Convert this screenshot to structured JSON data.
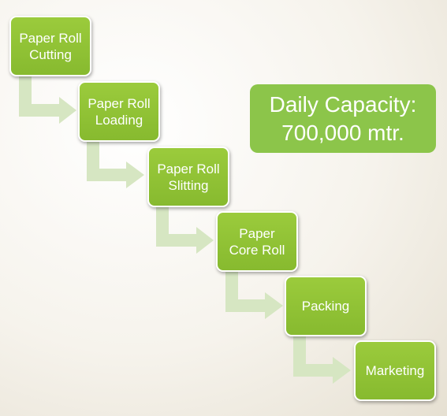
{
  "colors": {
    "box_fill": "#8cc040",
    "box_border": "#ffffff",
    "arrow_fill": "#d6e6c2",
    "capacity_fill": "#8cc54a",
    "text": "#ffffff"
  },
  "steps": [
    {
      "label": "Paper Roll\nCutting"
    },
    {
      "label": "Paper Roll\nLoading"
    },
    {
      "label": "Paper Roll\nSlitting"
    },
    {
      "label": "Paper\nCore Roll"
    },
    {
      "label": "Packing"
    },
    {
      "label": "Marketing"
    }
  ],
  "capacity": {
    "line1": "Daily Capacity:",
    "line2": "700,000 mtr."
  }
}
